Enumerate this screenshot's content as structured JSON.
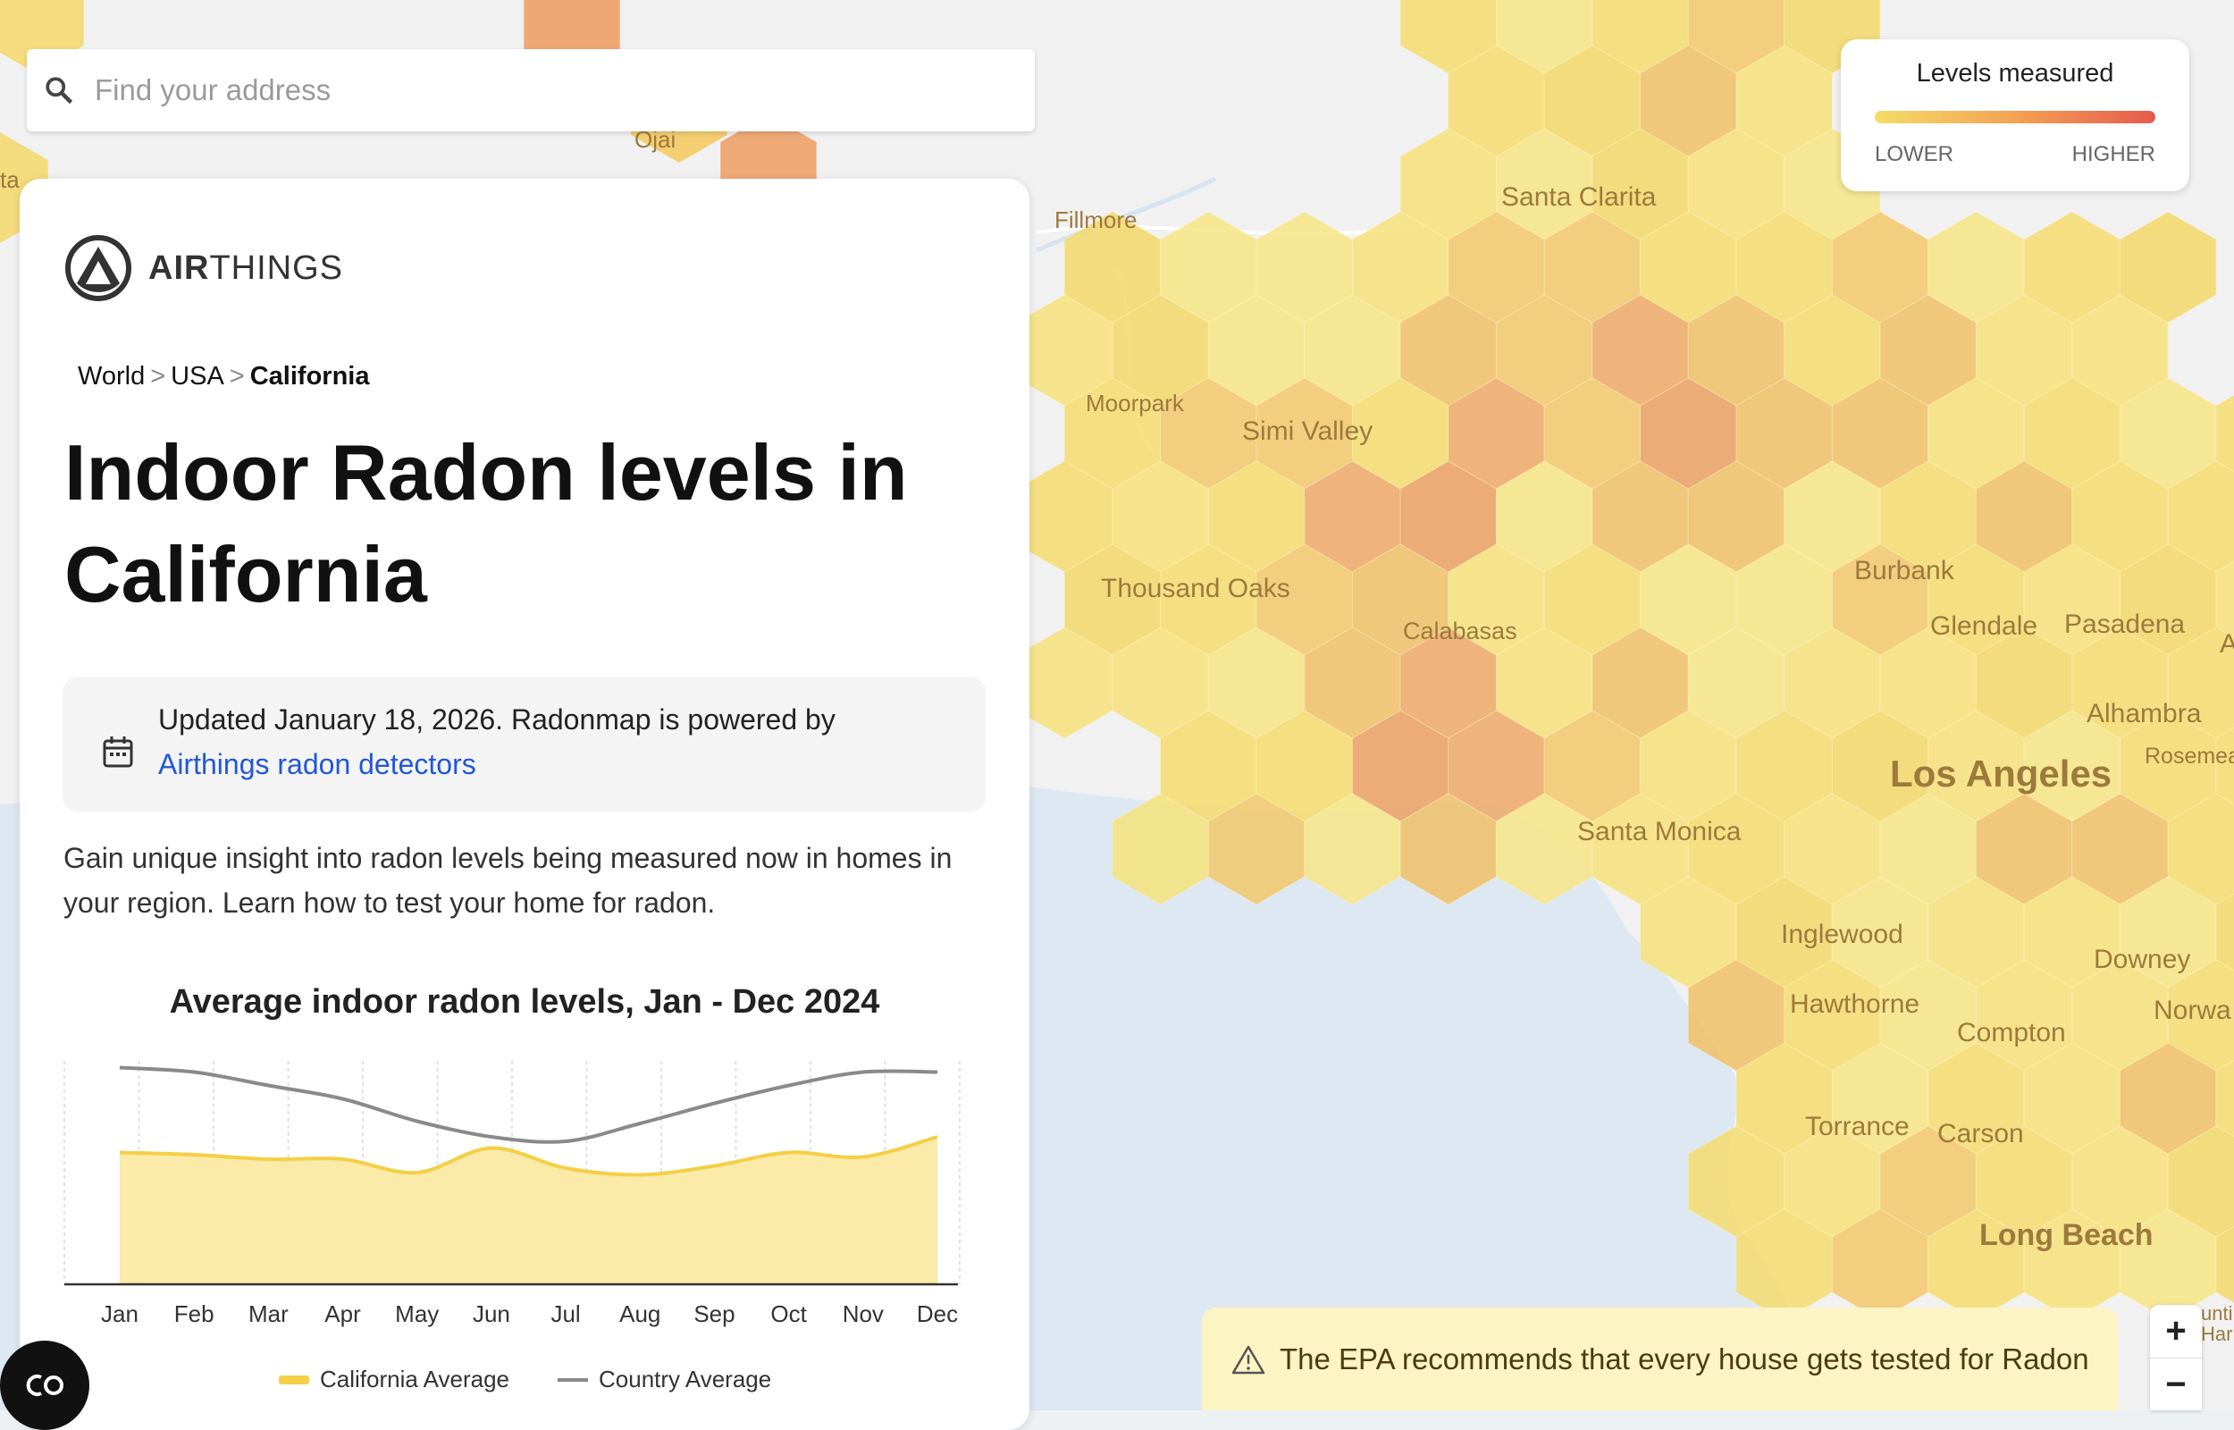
{
  "search": {
    "placeholder": "Find your address"
  },
  "brand": {
    "bold": "AIR",
    "light": "THINGS"
  },
  "breadcrumb": {
    "items": [
      "World",
      "USA"
    ],
    "current": "California",
    "separator": ">"
  },
  "page_title": "Indoor Radon levels in California",
  "updated": {
    "text": "Updated January 18, 2026. Radonmap is powered by",
    "link": "Airthings radon detectors"
  },
  "description": "Gain unique insight into radon levels being measured now in homes in your region. Learn how to test your home for radon.",
  "chart_data": {
    "type": "area",
    "title": "Average indoor radon levels, Jan - Dec 2024",
    "categories": [
      "Jan",
      "Feb",
      "Mar",
      "Apr",
      "May",
      "Jun",
      "Jul",
      "Aug",
      "Sep",
      "Oct",
      "Nov",
      "Dec"
    ],
    "ylim": [
      0,
      100
    ],
    "grid": "vertical",
    "series": [
      {
        "name": "California Average",
        "color": "#f5cf45",
        "fill": "#fbeaa8",
        "values": [
          59,
          58,
          56,
          56,
          50,
          61,
          52,
          49,
          53,
          59,
          57,
          66
        ]
      },
      {
        "name": "Country Average",
        "color": "#8a8a8a",
        "values": [
          97,
          95,
          89,
          83,
          73,
          66,
          64,
          72,
          81,
          89,
          95,
          95
        ]
      }
    ],
    "legend": "bottom"
  },
  "legend": {
    "title": "Levels measured",
    "low": "LOWER",
    "high": "HIGHER",
    "colors": [
      "#f4dd68",
      "#f3a253",
      "#e45a4e"
    ]
  },
  "epa_notice": "The EPA recommends that every house gets tested for Radon",
  "zoom": {
    "in": "+",
    "out": "−"
  },
  "map_labels": [
    "Ojai",
    "Fillmore",
    "Santa Clarita",
    "Moorpark",
    "Simi Valley",
    "Thousand Oaks",
    "Calabasas",
    "Burbank",
    "Glendale",
    "Pasadena",
    "Alhambra",
    "Rosemea",
    "Los Angeles",
    "Santa Monica",
    "Inglewood",
    "Hawthorne",
    "Downey",
    "Norwa",
    "Compton",
    "Torrance",
    "Carson",
    "Long Beach",
    "ta",
    "A",
    "unti",
    "Harl"
  ]
}
